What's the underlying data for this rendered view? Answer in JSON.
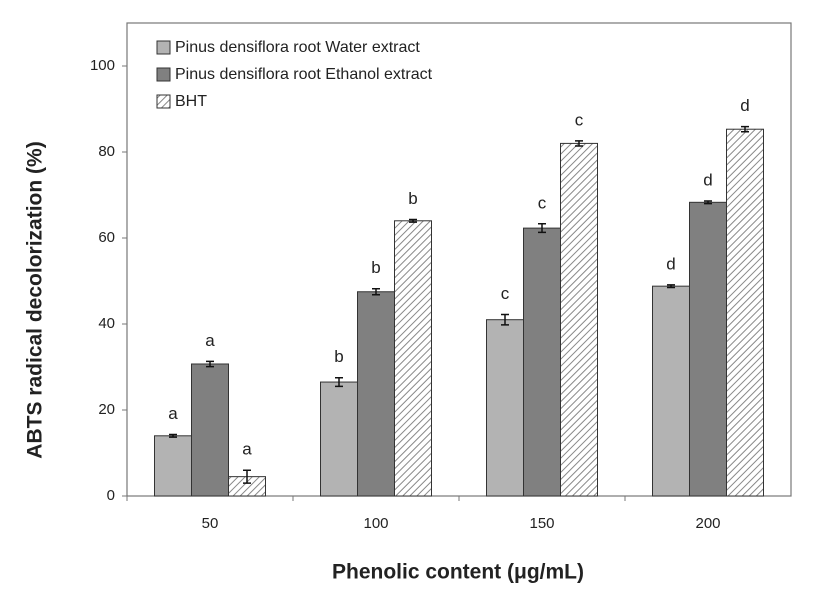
{
  "chart_data": {
    "type": "bar",
    "x_label": "Phenolic content (μg/mL)",
    "y_label": "ABTS radical decolorization (%)",
    "categories": [
      "50",
      "100",
      "150",
      "200"
    ],
    "series": [
      {
        "name": "Pinus densiflora root Water extract",
        "color": "#b3b3b3",
        "values": [
          14,
          26.5,
          41,
          48.8
        ],
        "errors": [
          0.3,
          1,
          1.2,
          0.3
        ],
        "letters": [
          "a",
          "b",
          "c",
          "d"
        ]
      },
      {
        "name": "Pinus densiflora root Ethanol extract",
        "color": "#808080",
        "values": [
          30.7,
          47.5,
          62.3,
          68.3
        ],
        "errors": [
          0.6,
          0.7,
          1,
          0.3
        ],
        "letters": [
          "a",
          "b",
          "c",
          "d"
        ]
      },
      {
        "name": "BHT",
        "color": "#ffffff",
        "pattern": "hatch",
        "values": [
          4.5,
          64,
          82,
          85.3
        ],
        "errors": [
          1.5,
          0.3,
          0.6,
          0.6
        ],
        "letters": [
          "a",
          "b",
          "c",
          "d"
        ]
      }
    ],
    "ylim": [
      0,
      110
    ],
    "yticks": [
      0,
      20,
      40,
      60,
      80,
      100
    ],
    "grid": false,
    "legend": "upper left"
  }
}
